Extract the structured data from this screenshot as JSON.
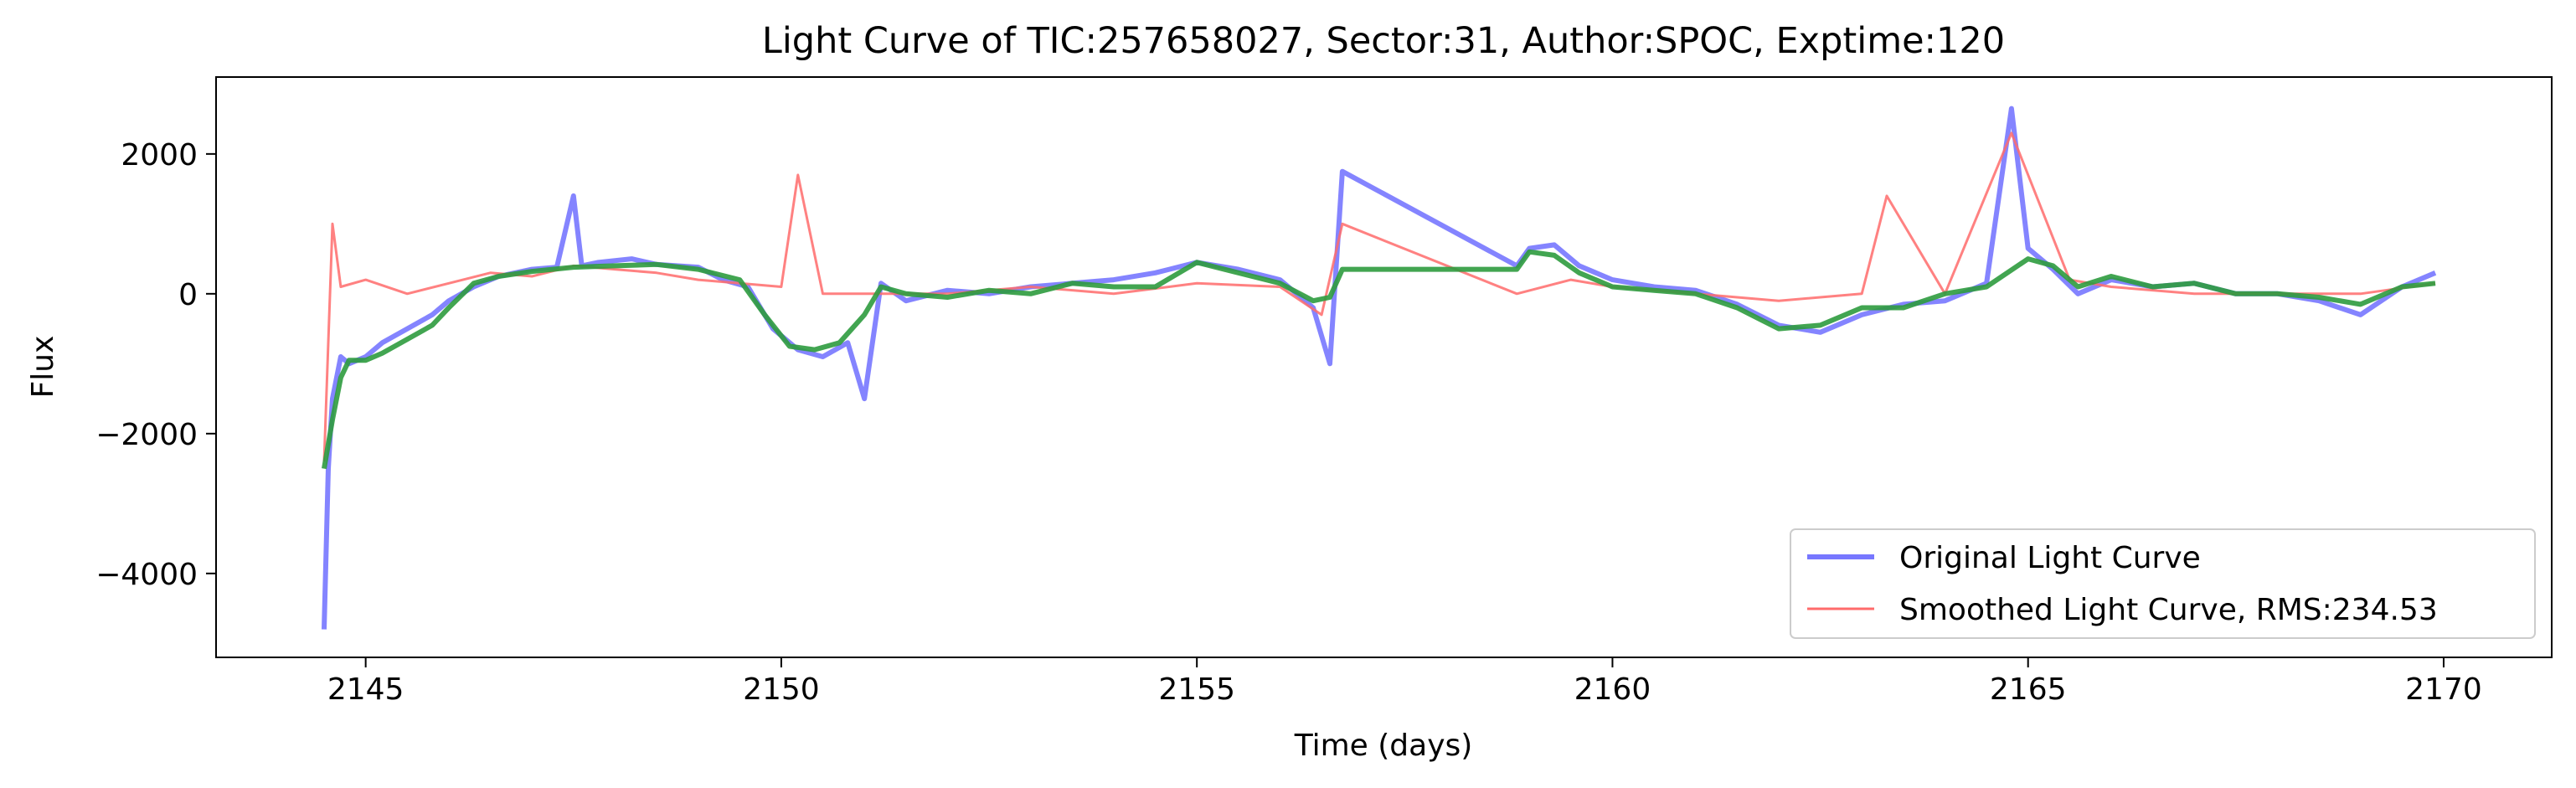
{
  "chart_data": {
    "type": "line",
    "title": "Light Curve of TIC:257658027, Sector:31, Author:SPOC, Exptime:120",
    "xlabel": "Time (days)",
    "ylabel": "Flux",
    "xlim": [
      2143.2,
      2171.3
    ],
    "ylim": [
      -5200,
      3100
    ],
    "xticks": [
      2145,
      2150,
      2155,
      2160,
      2165,
      2170
    ],
    "yticks": [
      -4000,
      -2000,
      0,
      2000
    ],
    "grid": false,
    "legend_position": "bottom-right",
    "legend": [
      {
        "label": "Original Light Curve",
        "color": "#7777ff"
      },
      {
        "label": "Smoothed Light Curve, RMS:234.53",
        "color": "#ff6b6b"
      }
    ],
    "series": [
      {
        "name": "Original Light Curve",
        "color": "#7777ff",
        "x": [
          2144.5,
          2144.55,
          2144.6,
          2144.7,
          2144.8,
          2145.0,
          2145.2,
          2145.5,
          2145.8,
          2146.0,
          2146.3,
          2146.6,
          2147.0,
          2147.3,
          2147.5,
          2147.6,
          2147.8,
          2148.2,
          2148.5,
          2149.0,
          2149.3,
          2149.6,
          2149.9,
          2150.2,
          2150.5,
          2150.8,
          2151.0,
          2151.2,
          2151.5,
          2152.0,
          2152.5,
          2153.0,
          2153.5,
          2154.0,
          2154.5,
          2155.0,
          2155.5,
          2156.0,
          2156.4,
          2156.6,
          2156.75,
          2158.85,
          2159.0,
          2159.3,
          2159.6,
          2160.0,
          2160.5,
          2161.0,
          2161.5,
          2162.0,
          2162.5,
          2163.0,
          2163.5,
          2164.0,
          2164.5,
          2164.8,
          2165.0,
          2165.3,
          2165.6,
          2166.0,
          2166.5,
          2167.0,
          2167.5,
          2168.0,
          2168.5,
          2169.0,
          2169.5,
          2169.9
        ],
        "y": [
          -4800,
          -2500,
          -1500,
          -900,
          -1000,
          -900,
          -700,
          -500,
          -300,
          -100,
          100,
          250,
          350,
          380,
          1400,
          400,
          450,
          500,
          420,
          380,
          200,
          100,
          -500,
          -800,
          -900,
          -700,
          -1500,
          150,
          -100,
          50,
          0,
          100,
          150,
          200,
          300,
          450,
          350,
          200,
          -200,
          -1000,
          1750,
          400,
          650,
          700,
          400,
          200,
          100,
          50,
          -150,
          -450,
          -550,
          -300,
          -150,
          -100,
          150,
          2650,
          650,
          350,
          0,
          200,
          100,
          150,
          0,
          0,
          -100,
          -300,
          100,
          300
        ]
      },
      {
        "name": "Smoothed Light Curve, RMS:234.53",
        "color": "#ff6b6b",
        "x": [
          2144.5,
          2144.6,
          2144.7,
          2145.0,
          2145.5,
          2146.0,
          2146.5,
          2147.0,
          2147.5,
          2148.0,
          2148.5,
          2149.0,
          2149.5,
          2150.0,
          2150.2,
          2150.5,
          2151.0,
          2151.5,
          2152.0,
          2153.0,
          2154.0,
          2155.0,
          2156.0,
          2156.5,
          2156.75,
          2158.85,
          2159.5,
          2160.0,
          2161.0,
          2162.0,
          2163.0,
          2163.3,
          2164.0,
          2164.8,
          2165.5,
          2166.0,
          2167.0,
          2168.0,
          2169.0,
          2169.9
        ],
        "y": [
          -2400,
          1000,
          100,
          200,
          0,
          150,
          300,
          250,
          400,
          350,
          300,
          200,
          150,
          100,
          1700,
          0,
          0,
          0,
          0,
          100,
          0,
          150,
          100,
          -300,
          1000,
          0,
          200,
          100,
          0,
          -100,
          0,
          1400,
          0,
          2300,
          200,
          100,
          0,
          0,
          0,
          150
        ]
      },
      {
        "name": "",
        "color": "#2e9b3e",
        "x": [
          2144.5,
          2144.6,
          2144.7,
          2144.8,
          2145.0,
          2145.2,
          2145.5,
          2145.8,
          2146.0,
          2146.3,
          2146.6,
          2147.0,
          2147.5,
          2148.0,
          2148.5,
          2149.0,
          2149.5,
          2149.8,
          2150.1,
          2150.4,
          2150.7,
          2151.0,
          2151.2,
          2151.5,
          2152.0,
          2152.5,
          2153.0,
          2153.5,
          2154.0,
          2154.5,
          2155.0,
          2155.5,
          2156.0,
          2156.4,
          2156.6,
          2156.75,
          2158.85,
          2159.0,
          2159.3,
          2159.6,
          2160.0,
          2160.5,
          2161.0,
          2161.5,
          2162.0,
          2162.5,
          2163.0,
          2163.5,
          2164.0,
          2164.5,
          2165.0,
          2165.3,
          2165.6,
          2166.0,
          2166.5,
          2167.0,
          2167.5,
          2168.0,
          2168.5,
          2169.0,
          2169.5,
          2169.9
        ],
        "y": [
          -2500,
          -1800,
          -1200,
          -950,
          -950,
          -850,
          -650,
          -450,
          -200,
          150,
          250,
          320,
          380,
          400,
          420,
          350,
          200,
          -300,
          -750,
          -800,
          -700,
          -300,
          100,
          0,
          -50,
          50,
          0,
          150,
          100,
          100,
          450,
          300,
          150,
          -100,
          -50,
          350,
          350,
          600,
          550,
          300,
          100,
          50,
          0,
          -200,
          -500,
          -450,
          -200,
          -200,
          0,
          100,
          500,
          400,
          100,
          250,
          100,
          150,
          0,
          0,
          -50,
          -150,
          100,
          150
        ]
      }
    ]
  }
}
